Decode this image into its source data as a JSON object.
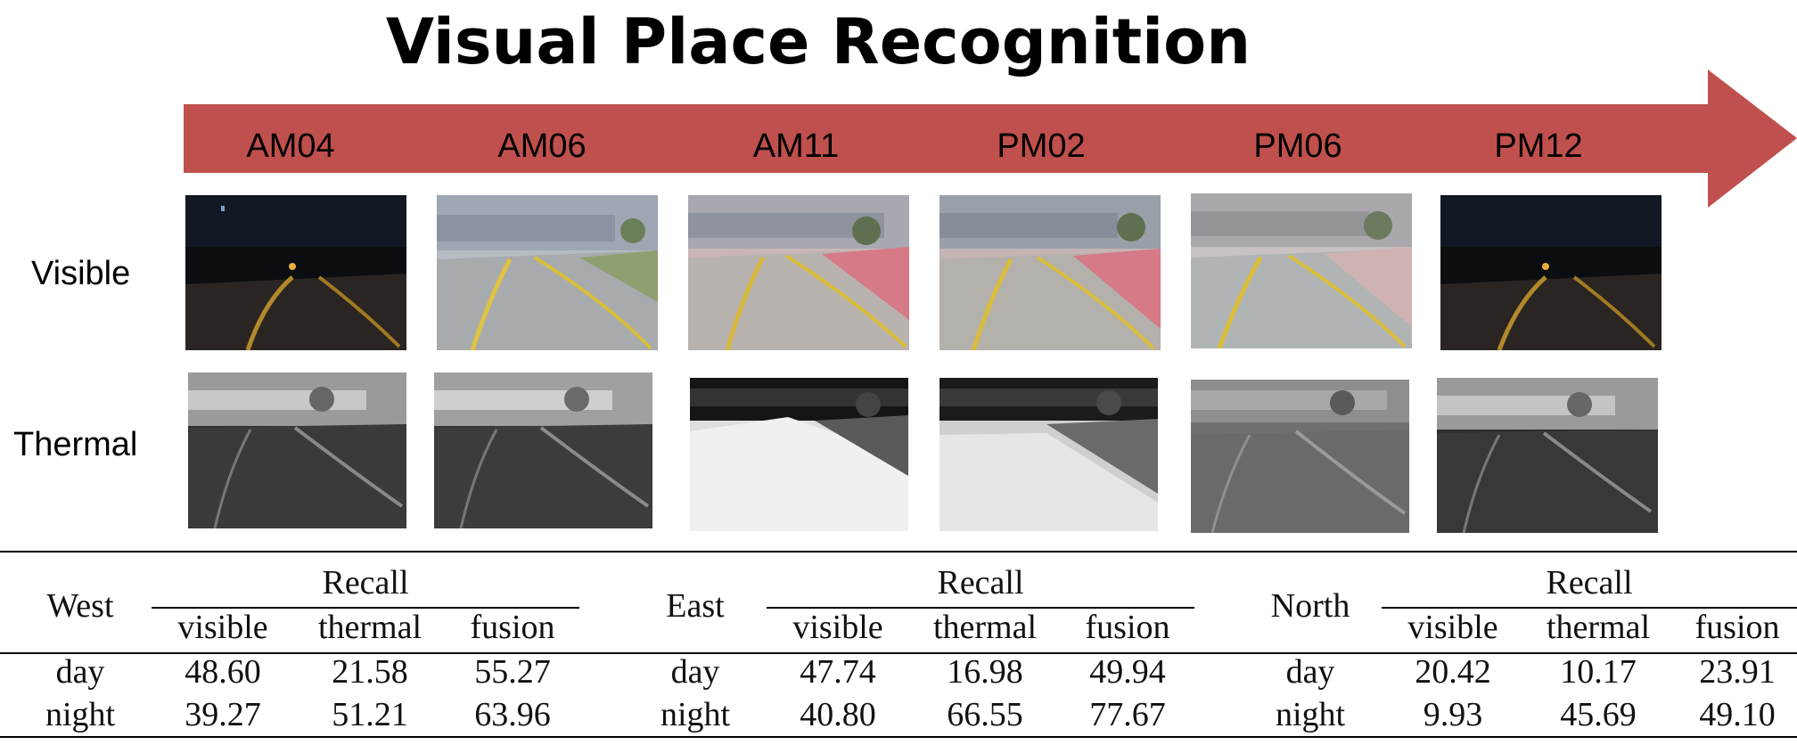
{
  "title": "Visual Place Recognition",
  "colors": {
    "arrow": "#c0504d"
  },
  "timeline": {
    "labels": [
      "AM04",
      "AM06",
      "AM11",
      "PM02",
      "PM06",
      "PM12"
    ]
  },
  "rows": {
    "visible": "Visible",
    "thermal": "Thermal"
  },
  "results": {
    "recall_label": "Recall",
    "columns": [
      "visible",
      "thermal",
      "fusion"
    ],
    "blocks": [
      {
        "region": "West",
        "rows": [
          {
            "label": "day",
            "values": [
              "48.60",
              "21.58",
              "55.27"
            ]
          },
          {
            "label": "night",
            "values": [
              "39.27",
              "51.21",
              "63.96"
            ]
          }
        ]
      },
      {
        "region": "East",
        "rows": [
          {
            "label": "day",
            "values": [
              "47.74",
              "16.98",
              "49.94"
            ]
          },
          {
            "label": "night",
            "values": [
              "40.80",
              "66.55",
              "77.67"
            ]
          }
        ]
      },
      {
        "region": "North",
        "rows": [
          {
            "label": "day",
            "values": [
              "20.42",
              "10.17",
              "23.91"
            ]
          },
          {
            "label": "night",
            "values": [
              "9.93",
              "45.69",
              "49.10"
            ]
          }
        ]
      }
    ]
  }
}
